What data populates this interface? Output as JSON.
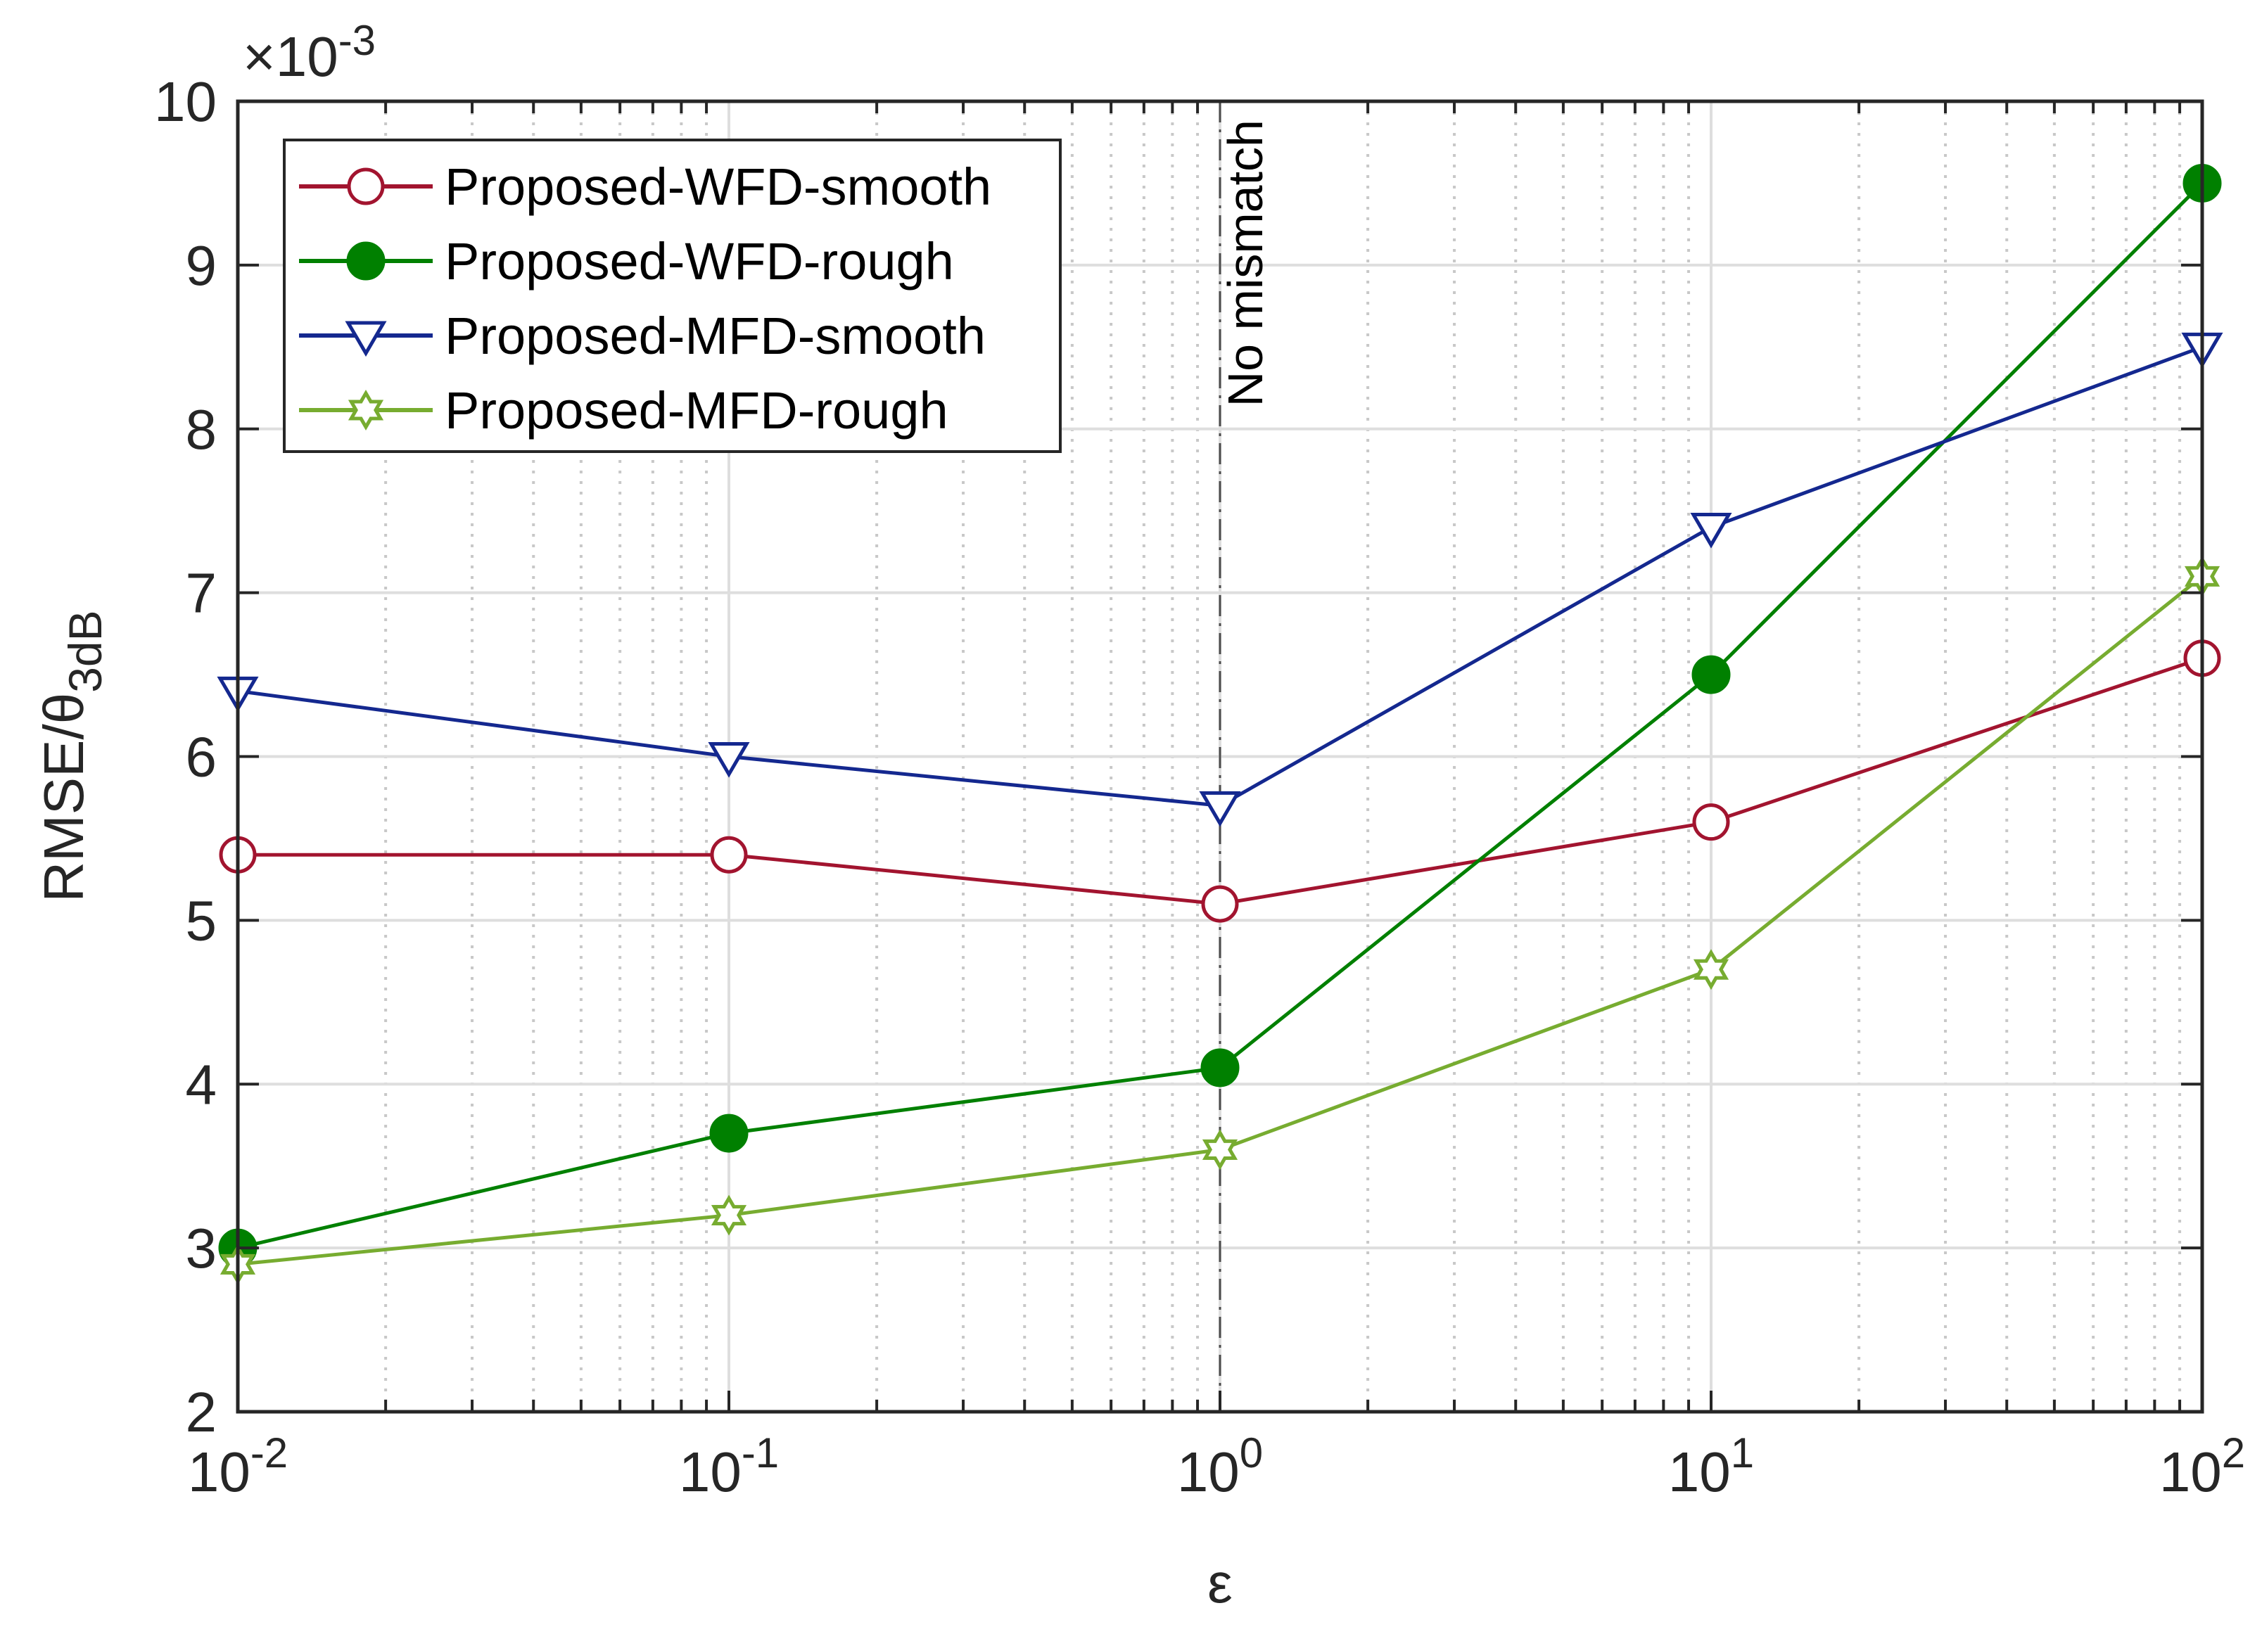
{
  "chart_data": {
    "type": "line",
    "title": "",
    "xlabel": "ε",
    "ylabel": "RMSE/θ",
    "ylabel_subscript": "3dB",
    "xscale": "log",
    "xlim": [
      0.01,
      100
    ],
    "ylim": [
      2,
      10
    ],
    "y_multiplier": "×10",
    "y_multiplier_exp": "-3",
    "x": [
      0.01,
      0.1,
      1,
      10,
      100
    ],
    "x_tick_labels": [
      {
        "base": "10",
        "exp": "-2"
      },
      {
        "base": "10",
        "exp": "-1"
      },
      {
        "base": "10",
        "exp": "0"
      },
      {
        "base": "10",
        "exp": "1"
      },
      {
        "base": "10",
        "exp": "2"
      }
    ],
    "y_ticks": [
      "2",
      "3",
      "4",
      "5",
      "6",
      "7",
      "8",
      "9",
      "10"
    ],
    "grid": true,
    "legend_position": "top-left",
    "annotation": {
      "text": "No mismatch",
      "x": 1
    },
    "series": [
      {
        "name": "Proposed-WFD-smooth",
        "color": "#A2142F",
        "marker": "circle-open",
        "values": [
          5.4,
          5.4,
          5.1,
          5.6,
          6.6
        ]
      },
      {
        "name": "Proposed-WFD-rough",
        "color": "#008000",
        "marker": "circle-filled",
        "values": [
          3.0,
          3.7,
          4.1,
          6.5,
          9.5
        ]
      },
      {
        "name": "Proposed-MFD-smooth",
        "color": "#14288F",
        "marker": "triangle-down-open",
        "values": [
          6.4,
          6.0,
          5.7,
          7.4,
          8.5
        ]
      },
      {
        "name": "Proposed-MFD-rough",
        "color": "#77AC30",
        "marker": "hexagram-open",
        "values": [
          2.9,
          3.2,
          3.6,
          4.7,
          7.1
        ]
      }
    ]
  }
}
